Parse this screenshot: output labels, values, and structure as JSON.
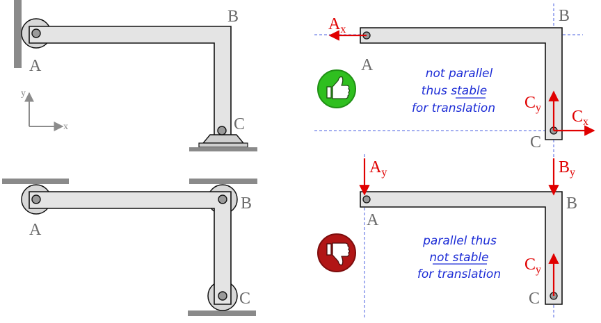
{
  "points": {
    "a": "A",
    "b": "B",
    "c": "C"
  },
  "axes": {
    "y": "y",
    "x": "x"
  },
  "forces": {
    "ax": {
      "base": "A",
      "sub": "x"
    },
    "ay": {
      "base": "A",
      "sub": "y"
    },
    "by": {
      "base": "B",
      "sub": "y"
    },
    "cx": {
      "base": "C",
      "sub": "x"
    },
    "cy": {
      "base": "C",
      "sub": "y"
    }
  },
  "notes": {
    "stable": [
      "not parallel",
      "thus stable",
      "for translation"
    ],
    "stable_underlined": "stable",
    "unstable": [
      "parallel thus",
      "not stable",
      "for translation"
    ]
  },
  "icons": {
    "stable": "thumbs-up-icon",
    "unstable": "thumbs-down-icon"
  },
  "colors": {
    "force": "#e00000",
    "note": "#1c2cd6",
    "dash": "#4a5fe0",
    "good": "#2fbf1f",
    "bad": "#b11616"
  }
}
